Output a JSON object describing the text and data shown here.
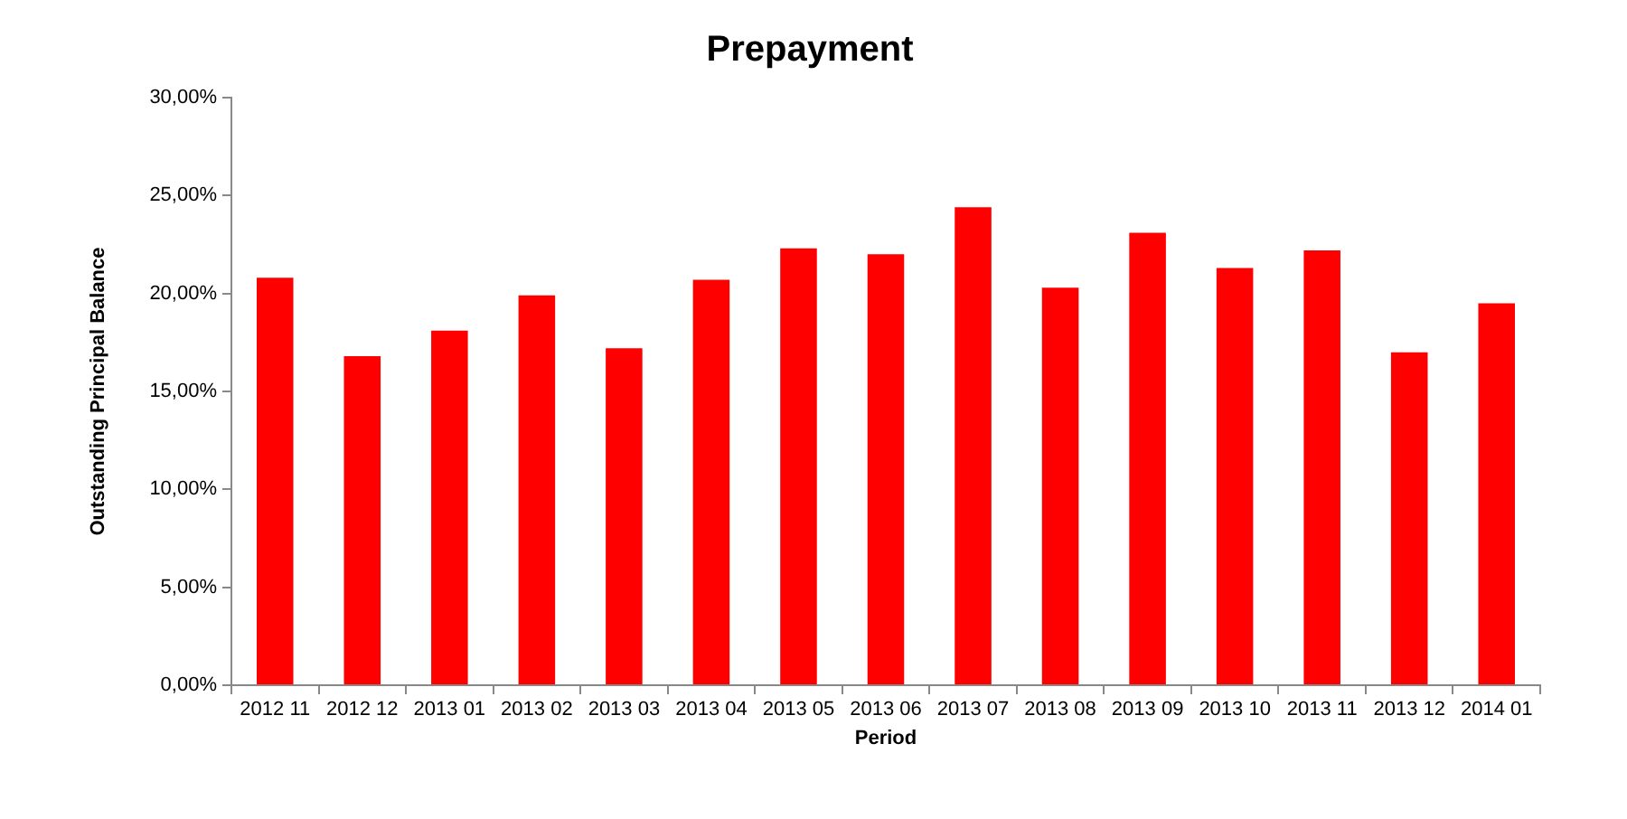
{
  "chart_data": {
    "type": "bar",
    "title": "Prepayment",
    "xlabel": "Period",
    "ylabel": "Outstanding Principal Balance",
    "categories": [
      "2012 11",
      "2012 12",
      "2013 01",
      "2013 02",
      "2013 03",
      "2013 04",
      "2013 05",
      "2013 06",
      "2013 07",
      "2013 08",
      "2013 09",
      "2013 10",
      "2013 11",
      "2013 12",
      "2014 01"
    ],
    "values": [
      20.8,
      16.8,
      18.1,
      19.9,
      17.2,
      20.7,
      22.3,
      22.0,
      24.4,
      20.3,
      23.1,
      21.3,
      22.2,
      17.0,
      19.5
    ],
    "color": "#ff0000",
    "ylim": [
      0,
      30
    ],
    "yticks": [
      {
        "value": 0,
        "label": "0,00%"
      },
      {
        "value": 5,
        "label": "5,00%"
      },
      {
        "value": 10,
        "label": "10,00%"
      },
      {
        "value": 15,
        "label": "15,00%"
      },
      {
        "value": 20,
        "label": "20,00%"
      },
      {
        "value": 25,
        "label": "25,00%"
      },
      {
        "value": 30,
        "label": "30,00%"
      }
    ],
    "grid": false,
    "legend": false
  }
}
